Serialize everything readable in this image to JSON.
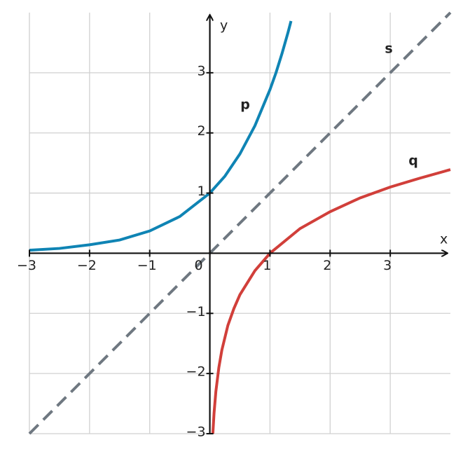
{
  "chart_data": {
    "type": "line",
    "x_label": "x",
    "y_label": "y",
    "xlim": [
      -3,
      4
    ],
    "ylim": [
      -3,
      4
    ],
    "xticks": [
      {
        "value": -3,
        "label": "−3"
      },
      {
        "value": -2,
        "label": "−2"
      },
      {
        "value": -1,
        "label": "−1"
      },
      0,
      1,
      2,
      3
    ],
    "yticks": [
      {
        "value": -3,
        "label": "−3"
      },
      {
        "value": -2,
        "label": "−2"
      },
      {
        "value": -1,
        "label": "−1"
      },
      1,
      2,
      3
    ],
    "grid": true,
    "series": [
      {
        "name": "p",
        "color": "#0f84b4",
        "dash": false,
        "x": [
          -3,
          -2.5,
          -2,
          -1.5,
          -1,
          -0.5,
          0,
          0.25,
          0.5,
          0.75,
          1,
          1.1,
          1.2,
          1.3,
          1.35
        ],
        "values": [
          0.05,
          0.08,
          0.14,
          0.22,
          0.37,
          0.61,
          1,
          1.28,
          1.65,
          2.12,
          2.72,
          3.0,
          3.32,
          3.67,
          3.86
        ]
      },
      {
        "name": "q",
        "color": "#d13f3a",
        "dash": false,
        "x": [
          0.05,
          0.07,
          0.1,
          0.15,
          0.2,
          0.3,
          0.4,
          0.5,
          0.75,
          1,
          1.5,
          2,
          2.5,
          3,
          3.5,
          4
        ],
        "values": [
          -3,
          -2.66,
          -2.3,
          -1.9,
          -1.61,
          -1.2,
          -0.92,
          -0.69,
          -0.29,
          0,
          0.41,
          0.69,
          0.92,
          1.1,
          1.25,
          1.39
        ]
      },
      {
        "name": "s",
        "color": "#6f7881",
        "dash": true,
        "x": [
          -3,
          4
        ],
        "values": [
          -3,
          4
        ]
      }
    ]
  }
}
